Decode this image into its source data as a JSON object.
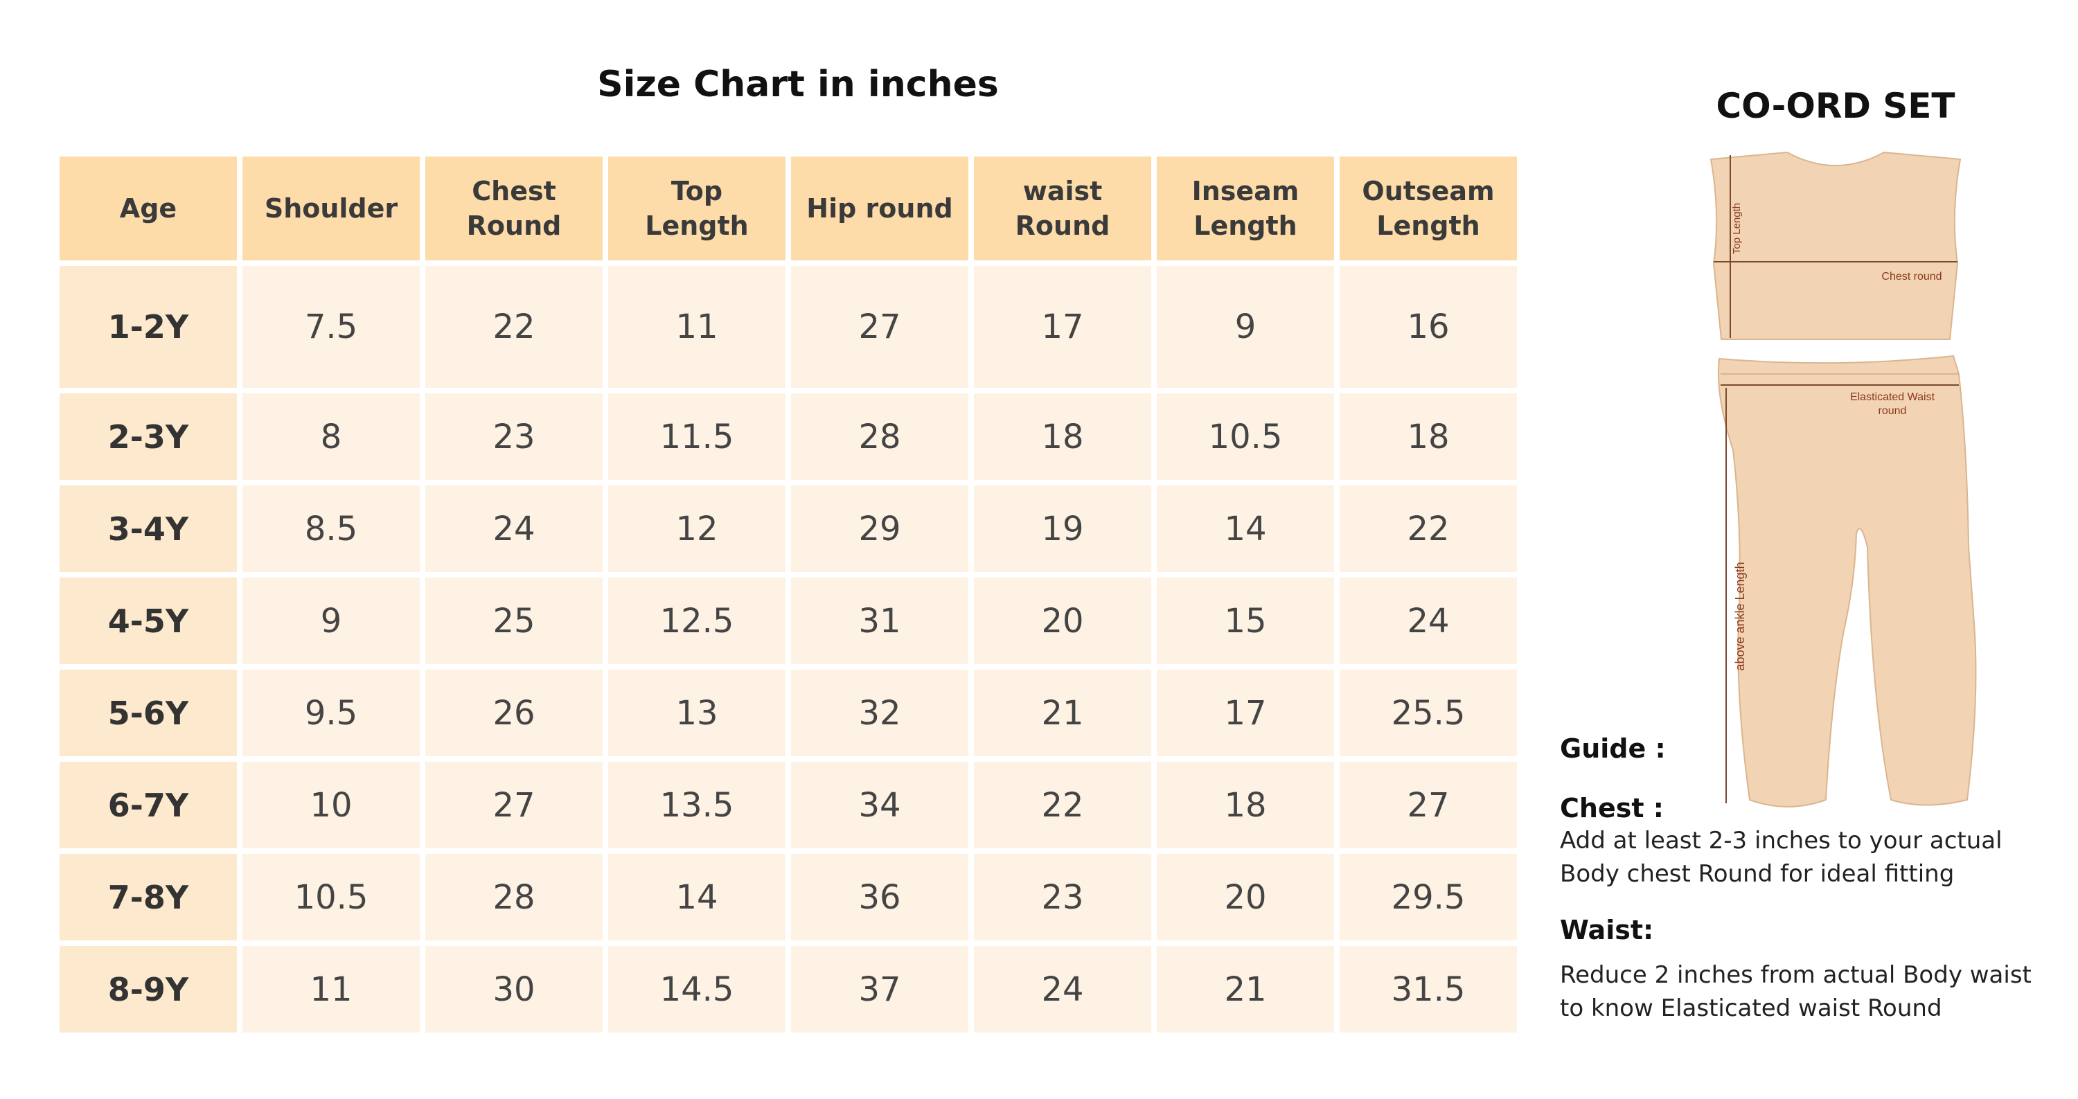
{
  "chart": {
    "title": "Size Chart in inches",
    "headers": [
      [
        "Age"
      ],
      [
        "Shoulder"
      ],
      [
        "Chest",
        "Round"
      ],
      [
        "Top",
        "Length"
      ],
      [
        "Hip round"
      ],
      [
        "waist",
        "Round"
      ],
      [
        "Inseam",
        "Length"
      ],
      [
        "Outseam",
        "Length"
      ]
    ],
    "rows": [
      [
        "1-2Y",
        "7.5",
        "22",
        "11",
        "27",
        "17",
        "9",
        "16"
      ],
      [
        "2-3Y",
        "8",
        "23",
        "11.5",
        "28",
        "18",
        "10.5",
        "18"
      ],
      [
        "3-4Y",
        "8.5",
        "24",
        "12",
        "29",
        "19",
        "14",
        "22"
      ],
      [
        "4-5Y",
        "9",
        "25",
        "12.5",
        "31",
        "20",
        "15",
        "24"
      ],
      [
        "5-6Y",
        "9.5",
        "26",
        "13",
        "32",
        "21",
        "17",
        "25.5"
      ],
      [
        "6-7Y",
        "10",
        "27",
        "13.5",
        "34",
        "22",
        "18",
        "27"
      ],
      [
        "7-8Y",
        "10.5",
        "28",
        "14",
        "36",
        "23",
        "20",
        "29.5"
      ],
      [
        "8-9Y",
        "11",
        "30",
        "14.5",
        "37",
        "24",
        "21",
        "31.5"
      ]
    ]
  },
  "illustration": {
    "title": "CO-ORD SET",
    "labels": {
      "top_length": "Top Length",
      "chest_round": "Chest round",
      "waist_round_1": "Elasticated Waist",
      "waist_round_2": "round",
      "ankle_length": "above ankle Length"
    },
    "colors": {
      "fabric": "#f2d3b3",
      "outline": "#d9b690",
      "measure": "#7a4a2a",
      "label": "#8a3a1c"
    }
  },
  "guide": {
    "heading": "Guide :",
    "chest_heading": "Chest :",
    "chest_line1": "Add at least 2-3 inches to your actual",
    "chest_line2": "Body chest Round for ideal fitting",
    "waist_heading": "Waist:",
    "waist_line1": "Reduce  2 inches from actual Body waist",
    "waist_line2": "to know Elasticated waist Round"
  },
  "colors": {
    "header_bg": "#fddcaa",
    "age_bg": "#fde9cd",
    "cell_bg": "#fdf2e3"
  }
}
